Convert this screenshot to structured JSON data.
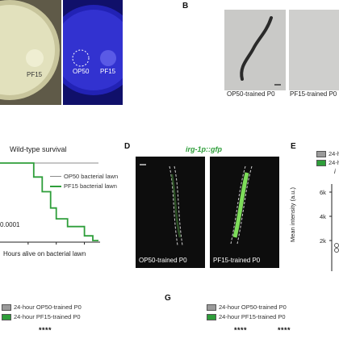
{
  "panels": {
    "A": {
      "labels": {
        "pf15_left": "PF15",
        "op50": "OP50",
        "pf15_right": "PF15"
      }
    },
    "B": {
      "letter": "B",
      "captions": {
        "left": "OP50-trained P0",
        "right": "PF15-trained P0"
      }
    },
    "C": {
      "title": "Wild-type survival",
      "pvalue": "0.0001",
      "xlabel": "Hours alive on bacterial lawn",
      "legend": {
        "op50": "OP50 bacterial lawn",
        "pf15": "PF15 bacterial lawn"
      },
      "colors": {
        "op50": "#8c8c8c",
        "pf15": "#2e9e3a"
      },
      "chart_data": {
        "type": "line",
        "xlabel": "Hours alive on bacterial lawn",
        "xlim": [
          0,
          70
        ],
        "ylim": [
          0,
          100
        ],
        "x_ticks": [
          20,
          40,
          60
        ],
        "series": [
          {
            "name": "OP50 bacterial lawn",
            "x": [
              0,
              70
            ],
            "y": [
              100,
              100
            ]
          },
          {
            "name": "PF15 bacterial lawn",
            "x": [
              0,
              24,
              24,
              30,
              30,
              36,
              36,
              40,
              40,
              48,
              48,
              60,
              60,
              66,
              66,
              70
            ],
            "y": [
              100,
              100,
              82,
              82,
              63,
              63,
              42,
              42,
              28,
              28,
              18,
              18,
              6,
              6,
              0,
              0
            ]
          }
        ]
      }
    },
    "D": {
      "letter": "D",
      "title": "irg-1p::gfp",
      "captions": {
        "left": "OP50-trained P0",
        "right": "PF15-trained P0"
      }
    },
    "E": {
      "letter": "E",
      "legend": [
        "24-h",
        "24-h"
      ],
      "ylabel": "Mean intensity (a.u.)",
      "ticks": [
        "6k",
        "4k",
        "2k"
      ],
      "partial": "i"
    },
    "F": {
      "legend": {
        "op50": "24-hour OP50-trained P0",
        "pf15": "24-hour PF15-trained P0"
      },
      "stars": "****"
    },
    "G": {
      "letter": "G",
      "legend": {
        "op50": "24-hour OP50-trained P0",
        "pf15": "24-hour PF15-trained P0"
      },
      "stars": [
        "****",
        "****"
      ]
    }
  }
}
